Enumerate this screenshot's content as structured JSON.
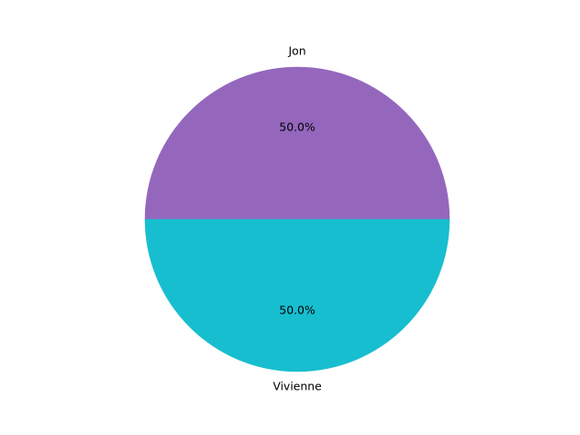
{
  "chart_data": {
    "type": "pie",
    "slices": [
      {
        "label": "Jon",
        "value": 50.0,
        "percent_label": "50.0%",
        "color": "#9467bd"
      },
      {
        "label": "Vivienne",
        "value": 50.0,
        "percent_label": "50.0%",
        "color": "#17becf"
      }
    ],
    "title": "",
    "start_angle": 0,
    "direction": "counterclockwise",
    "legend": "none"
  }
}
